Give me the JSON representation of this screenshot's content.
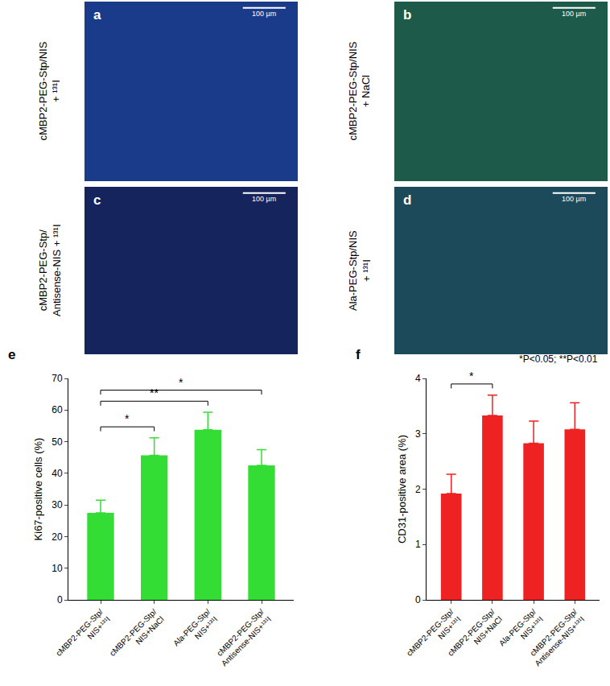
{
  "panels": [
    {
      "letter": "a",
      "label": [
        "cMBP2-PEG-Stp/NIS",
        "+ ¹³¹I"
      ],
      "scale_bar": "100 µm"
    },
    {
      "letter": "b",
      "label": [
        "cMBP2-PEG-Stp/NIS",
        "+ NaCl"
      ],
      "scale_bar": "100 µm"
    },
    {
      "letter": "c",
      "label": [
        "cMBP2-PEG-Stp/",
        "Antisense-NIS + ¹³¹I"
      ],
      "scale_bar": "100 µm"
    },
    {
      "letter": "d",
      "label": [
        "Ala-PEG-Stp/NIS",
        "+ ¹³¹I"
      ],
      "scale_bar": "100 µm"
    }
  ],
  "chart_data": [
    {
      "type": "bar",
      "panel": "e",
      "categories": [
        "cMBP2-PEG-Stp/NIS+¹³¹I",
        "cMBP2-PEG-Stp/NIS+NaCl",
        "Ala-PEG-Stp/NIS+¹³¹I",
        "cMBP2-PEG-Stp/Antisense-NIS+¹³¹I"
      ],
      "values": [
        27.5,
        45.7,
        53.8,
        42.5
      ],
      "errors": [
        4.0,
        5.5,
        5.5,
        5.0
      ],
      "color": "#33dd33",
      "ylabel": "Ki67-positive cells (%)",
      "ylim": [
        0,
        70
      ],
      "yticks": [
        0,
        10,
        20,
        30,
        40,
        50,
        60,
        70
      ],
      "significance": [
        {
          "from": 0,
          "to": 1,
          "label": "*"
        },
        {
          "from": 0,
          "to": 2,
          "label": "**"
        },
        {
          "from": 0,
          "to": 3,
          "label": "*"
        }
      ]
    },
    {
      "type": "bar",
      "panel": "f",
      "categories": [
        "cMBP2-PEG-Stp/NIS+¹³¹I",
        "cMBP2-PEG-Stp/NIS+NaCl",
        "Ala-PEG-Stp/NIS+¹³¹I",
        "cMBP2-PEG-Stp/Antisense-NIS+¹³¹I"
      ],
      "values": [
        1.92,
        3.33,
        2.83,
        3.08
      ],
      "errors": [
        0.35,
        0.37,
        0.4,
        0.48
      ],
      "color": "#ee2222",
      "ylabel": "CD31-positive area (%)",
      "ylim": [
        0,
        4
      ],
      "yticks": [
        0,
        1,
        2,
        3,
        4
      ],
      "significance": [
        {
          "from": 0,
          "to": 1,
          "label": "*"
        }
      ],
      "annotation": "*P<0.05; **P<0.01"
    }
  ]
}
